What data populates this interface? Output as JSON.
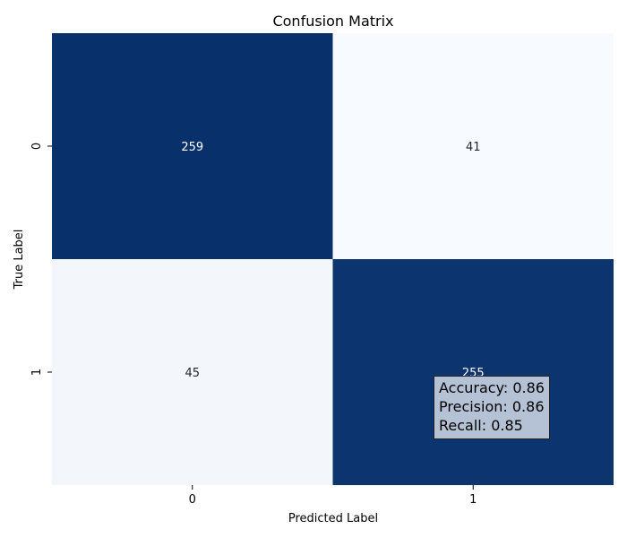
{
  "chart_data": {
    "type": "heatmap",
    "title": "Confusion Matrix",
    "xlabel": "Predicted Label",
    "ylabel": "True Label",
    "x_categories": [
      "0",
      "1"
    ],
    "y_categories": [
      "0",
      "1"
    ],
    "values": [
      [
        259,
        41
      ],
      [
        45,
        255
      ]
    ],
    "colormap": "Blues",
    "color_range": [
      41,
      259
    ],
    "colorbar": false,
    "annotations": {
      "accuracy": "Accuracy: 0.86",
      "precision": "Precision: 0.86",
      "recall": "Recall: 0.85"
    }
  }
}
